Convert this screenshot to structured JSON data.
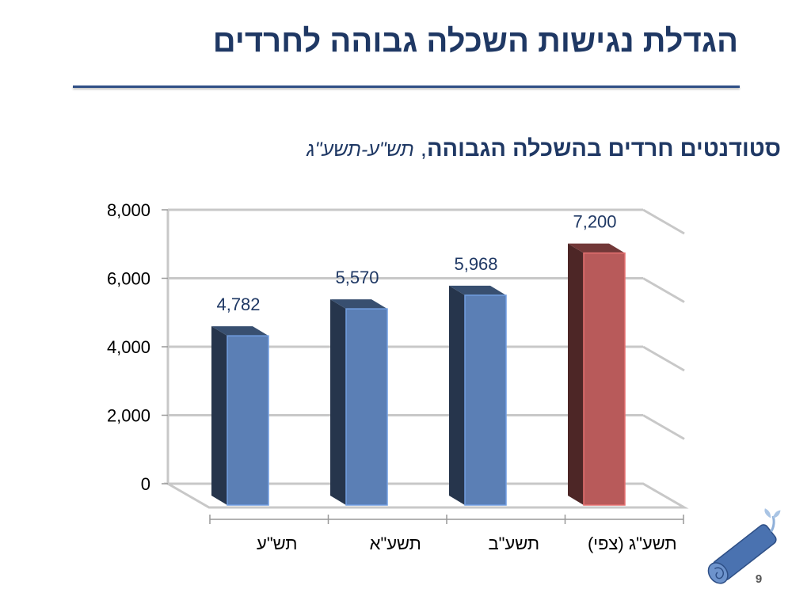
{
  "slide": {
    "title": "הגדלת נגישות השכלה גבוהה לחרדים",
    "page_number": "9"
  },
  "chart_title": {
    "main": "סטודנטים חרדים בהשכלה הגבוהה",
    "separator": ",",
    "sub": "תש\"ע-תשע\"ג"
  },
  "chart_data": {
    "type": "bar",
    "title": "סטודנטים חרדים בהשכלה הגבוהה, תש\"ע-תשע\"ג",
    "categories": [
      "תש\"ע",
      "תשע\"א",
      "תשע\"ב",
      "תשע\"ג (צפי)"
    ],
    "values": [
      4782,
      5570,
      5968,
      7200
    ],
    "value_labels": [
      "4,782",
      "5,570",
      "5,968",
      "7,200"
    ],
    "ylim": [
      0,
      8000
    ],
    "yticks": [
      0,
      2000,
      4000,
      6000,
      8000
    ],
    "ytick_labels": [
      "0",
      "2,000",
      "4,000",
      "6,000",
      "8,000"
    ],
    "grid": true,
    "three_d": true,
    "colors": [
      "#5b7fb5",
      "#5b7fb5",
      "#5b7fb5",
      "#b85a5a"
    ],
    "label_color": "#1f3864"
  },
  "logo": {
    "icon": "rolled-scroll-icon"
  }
}
